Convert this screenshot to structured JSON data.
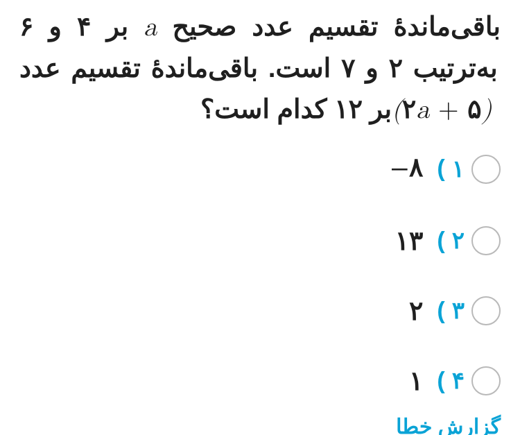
{
  "question": {
    "part1": "باقی‌ماندهٔ تقسیم عدد صحیح ",
    "mathA": "a",
    "part2": " بر ۴ و ۶ به‌ترتیب ۲ و ۷ است. باقی‌ماندهٔ تقسیم عدد ",
    "mathExprOpen": "(",
    "mathExprTwo": "۲",
    "mathExprA": "a",
    "mathExprPlus": " + ",
    "mathExprFive": "۵",
    "mathExprClose": ")",
    "part3": " بر ۱۲ کدام است؟"
  },
  "options": [
    {
      "num": "۱",
      "paren": ")",
      "value": "۸",
      "neg": true
    },
    {
      "num": "۲",
      "paren": ")",
      "value": "۱۳",
      "neg": false
    },
    {
      "num": "۳",
      "paren": ")",
      "value": "۲",
      "neg": false
    },
    {
      "num": "۴",
      "paren": ")",
      "value": "۱",
      "neg": false
    }
  ],
  "report_label": "گزارش خطا",
  "colors": {
    "accent": "#0aa3d6",
    "text": "#1f1f1f",
    "radio_border": "#b9b9b9",
    "background": "#ffffff"
  }
}
